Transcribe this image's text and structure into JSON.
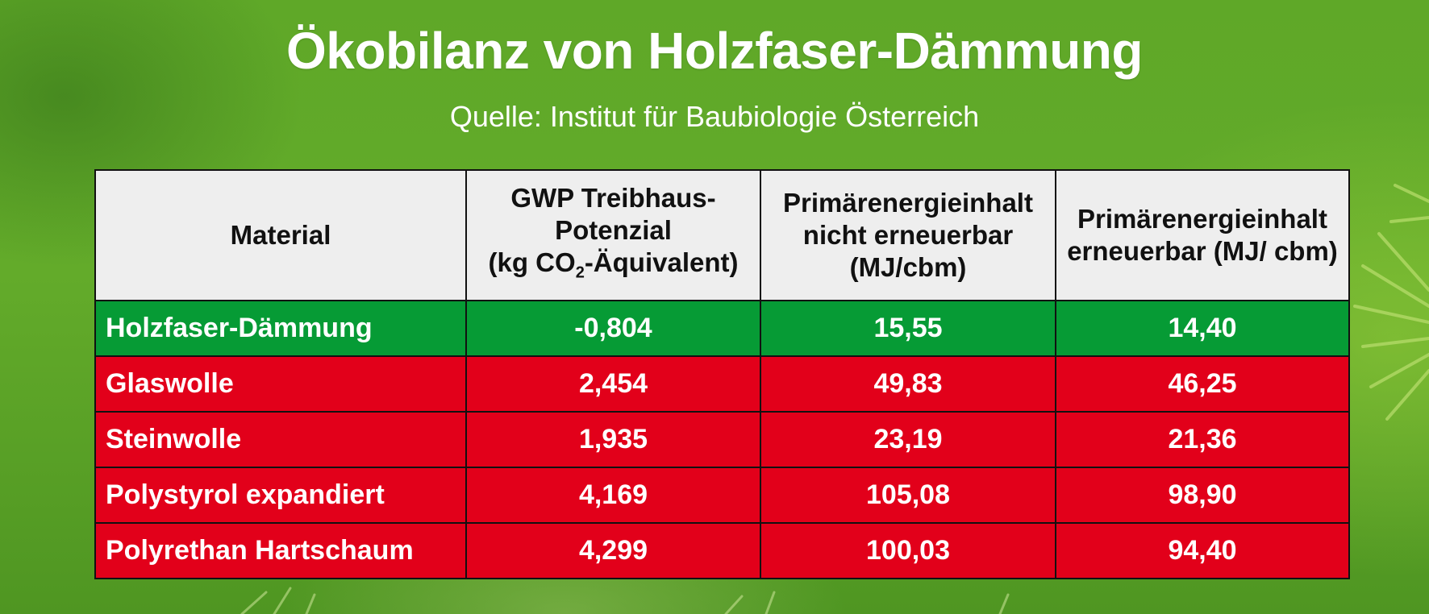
{
  "title": "Ökobilanz von Holzfaser-Dämmung",
  "subtitle": "Quelle: Institut für Baubiologie Österreich",
  "colors": {
    "good": "#069b35",
    "bad": "#e2001a",
    "header": "#eeeeee"
  },
  "chart_data": {
    "type": "table",
    "title": "Ökobilanz von Holzfaser-Dämmung",
    "subtitle": "Quelle: Institut für Baubiologie Österreich",
    "columns": {
      "material": "Material",
      "gwp_line1": "GWP Treibhaus-",
      "gwp_line2": "Potenzial",
      "gwp_line3a": "(kg CO",
      "gwp_sub": "2",
      "gwp_line3b": "-Äquivalent)",
      "pe_nicht": "Primärenergieinhalt nicht erneuerbar (MJ/cbm)",
      "pe_erneuerbar": "Primärenergieinhalt erneuerbar (MJ/ cbm)"
    },
    "rows": [
      {
        "material": "Holzfaser-Dämmung",
        "gwp": "-0,804",
        "pe_nicht": "15,55",
        "pe_erneuerbar": "14,40",
        "status": "good"
      },
      {
        "material": "Glaswolle",
        "gwp": "2,454",
        "pe_nicht": "49,83",
        "pe_erneuerbar": "46,25",
        "status": "bad"
      },
      {
        "material": "Steinwolle",
        "gwp": "1,935",
        "pe_nicht": "23,19",
        "pe_erneuerbar": "21,36",
        "status": "bad"
      },
      {
        "material": "Polystyrol expandiert",
        "gwp": "4,169",
        "pe_nicht": "105,08",
        "pe_erneuerbar": "98,90",
        "status": "bad"
      },
      {
        "material": "Polyrethan Hartschaum",
        "gwp": "4,299",
        "pe_nicht": "100,03",
        "pe_erneuerbar": "94,40",
        "status": "bad"
      }
    ]
  }
}
